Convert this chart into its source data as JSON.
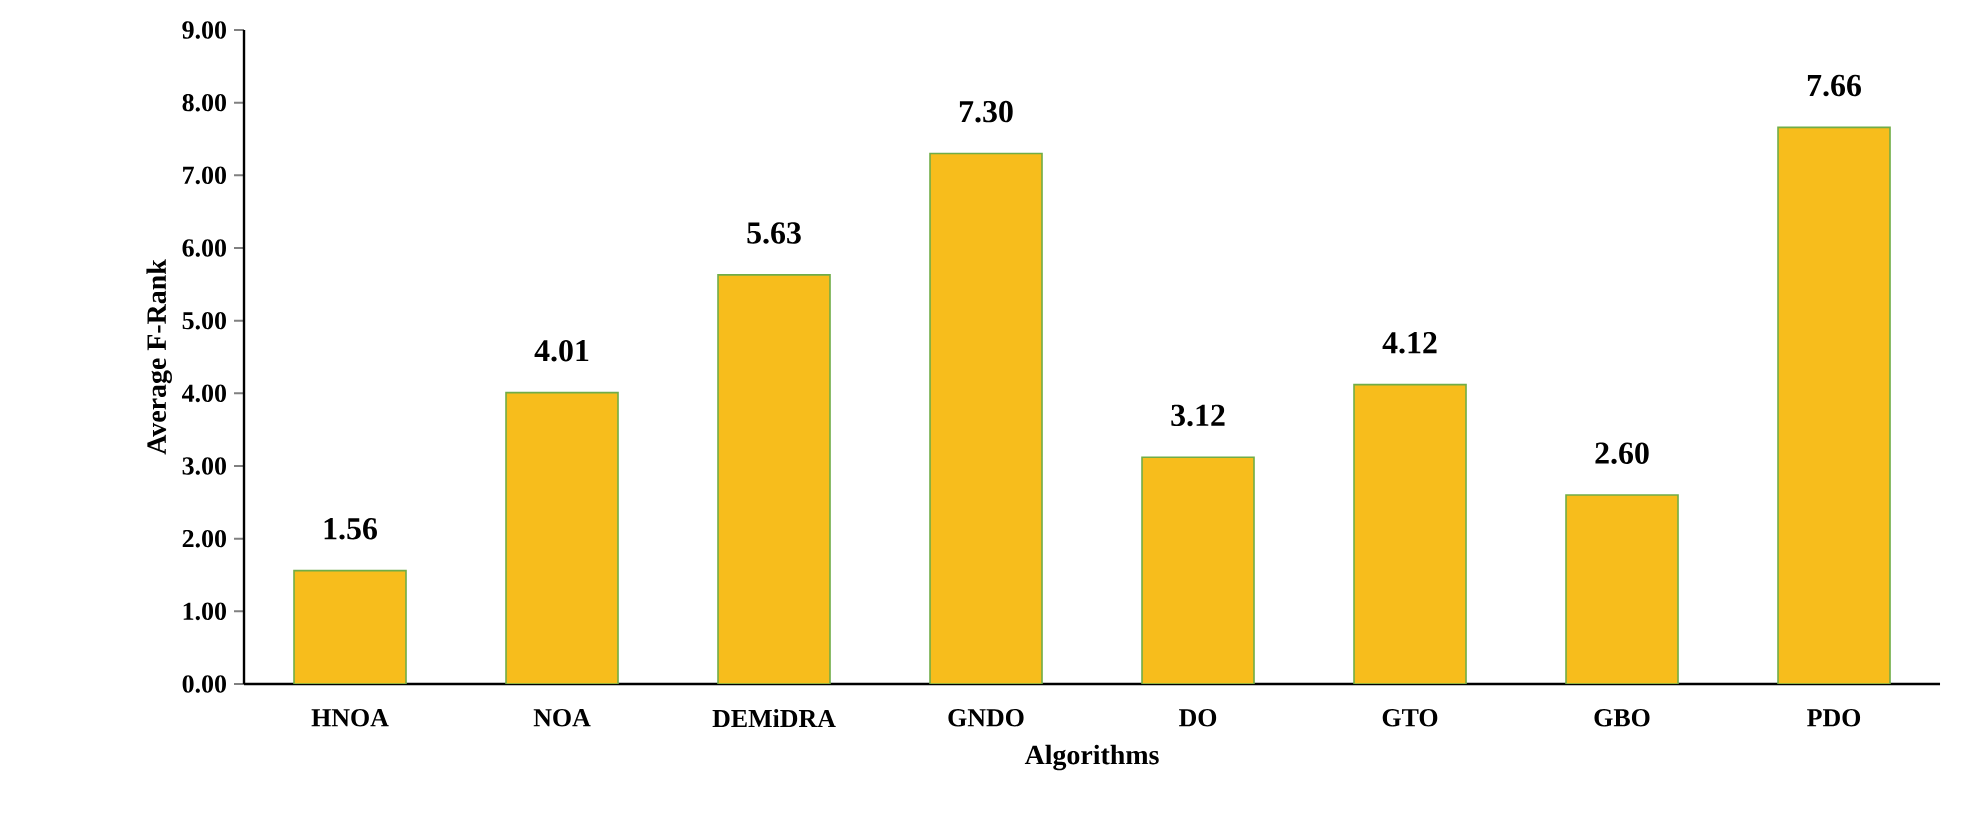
{
  "chart_data": {
    "type": "bar",
    "xlabel": "Algorithms",
    "ylabel": "Average F-Rank",
    "categories": [
      "HNOA",
      "NOA",
      "DEMiDRA",
      "GNDO",
      "DO",
      "GTO",
      "GBO",
      "PDO"
    ],
    "values": [
      1.56,
      4.01,
      5.63,
      7.3,
      3.12,
      4.12,
      2.6,
      7.66
    ],
    "value_labels": [
      "1.56",
      "4.01",
      "5.63",
      "7.30",
      "3.12",
      "4.12",
      "2.60",
      "7.66"
    ],
    "color": "#f7bd1c",
    "ylim": [
      0,
      9
    ],
    "yticks": [
      {
        "value": 0,
        "label": "0.00"
      },
      {
        "value": 1,
        "label": "1.00"
      },
      {
        "value": 2,
        "label": "2.00"
      },
      {
        "value": 3,
        "label": "3.00"
      },
      {
        "value": 4,
        "label": "4.00"
      },
      {
        "value": 5,
        "label": "5.00"
      },
      {
        "value": 6,
        "label": "6.00"
      },
      {
        "value": 7,
        "label": "7.00"
      },
      {
        "value": 8,
        "label": "8.00"
      },
      {
        "value": 9,
        "label": "9.00"
      }
    ],
    "grid": false
  }
}
